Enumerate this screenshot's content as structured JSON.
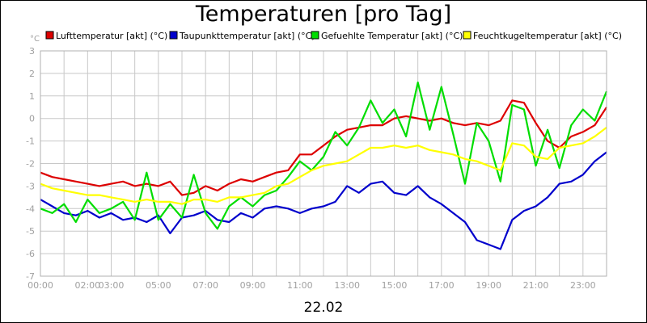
{
  "chart_data": {
    "type": "line",
    "title": "Temperaturen [pro Tag]",
    "ylabel": "°C",
    "xlabel": "22.02",
    "ylim": [
      -7,
      3
    ],
    "xlim": [
      0,
      24
    ],
    "y_ticks": [
      "3",
      "2",
      "1",
      "0",
      "-1",
      "-2",
      "-3",
      "-4",
      "-5",
      "-6",
      "-7"
    ],
    "x_ticks": [
      {
        "label": "00:00",
        "x": 0
      },
      {
        "label": "02:00",
        "x": 2
      },
      {
        "label": "03:00",
        "x": 3
      },
      {
        "label": "05:00",
        "x": 5
      },
      {
        "label": "07:00",
        "x": 7
      },
      {
        "label": "09:00",
        "x": 9
      },
      {
        "label": "11:00",
        "x": 11
      },
      {
        "label": "13:00",
        "x": 13
      },
      {
        "label": "15:00",
        "x": 15
      },
      {
        "label": "17:00",
        "x": 17
      },
      {
        "label": "19:00",
        "x": 19
      },
      {
        "label": "21:00",
        "x": 21
      },
      {
        "label": "23:00",
        "x": 23
      }
    ],
    "grid": true,
    "legend_position": "top",
    "series": [
      {
        "name": "Lufttemperatur [akt] (°C)",
        "color": "#dd0000",
        "x": [
          0,
          0.5,
          1,
          1.5,
          2,
          2.5,
          3,
          3.5,
          4,
          4.5,
          5,
          5.5,
          6,
          6.5,
          7,
          7.5,
          8,
          8.5,
          9,
          9.5,
          10,
          10.5,
          11,
          11.5,
          12,
          12.5,
          13,
          13.5,
          14,
          14.5,
          15,
          15.5,
          16,
          16.5,
          17,
          17.5,
          18,
          18.5,
          19,
          19.5,
          20,
          20.5,
          21,
          21.5,
          22,
          22.5,
          23,
          23.5,
          24
        ],
        "y": [
          -2.4,
          -2.6,
          -2.7,
          -2.8,
          -2.9,
          -3.0,
          -2.9,
          -2.8,
          -3.0,
          -2.9,
          -3.0,
          -2.8,
          -3.4,
          -3.3,
          -3.0,
          -3.2,
          -2.9,
          -2.7,
          -2.8,
          -2.6,
          -2.4,
          -2.3,
          -1.6,
          -1.6,
          -1.2,
          -0.8,
          -0.5,
          -0.4,
          -0.3,
          -0.3,
          0.0,
          0.1,
          0.0,
          -0.1,
          0.0,
          -0.2,
          -0.3,
          -0.2,
          -0.3,
          -0.1,
          0.8,
          0.7,
          -0.2,
          -1.0,
          -1.3,
          -0.8,
          -0.6,
          -0.3,
          0.5
        ]
      },
      {
        "name": "Taupunkttemperatur [akt] (°C)",
        "color": "#0000cc",
        "x": [
          0,
          0.5,
          1,
          1.5,
          2,
          2.5,
          3,
          3.5,
          4,
          4.5,
          5,
          5.5,
          6,
          6.5,
          7,
          7.5,
          8,
          8.5,
          9,
          9.5,
          10,
          10.5,
          11,
          11.5,
          12,
          12.5,
          13,
          13.5,
          14,
          14.5,
          15,
          15.5,
          16,
          16.5,
          17,
          17.5,
          18,
          18.5,
          19,
          19.5,
          20,
          20.5,
          21,
          21.5,
          22,
          22.5,
          23,
          23.5,
          24
        ],
        "y": [
          -3.6,
          -3.9,
          -4.2,
          -4.3,
          -4.1,
          -4.4,
          -4.2,
          -4.5,
          -4.4,
          -4.6,
          -4.3,
          -5.1,
          -4.4,
          -4.3,
          -4.1,
          -4.5,
          -4.6,
          -4.2,
          -4.4,
          -4.0,
          -3.9,
          -4.0,
          -4.2,
          -4.0,
          -3.9,
          -3.7,
          -3.0,
          -3.3,
          -2.9,
          -2.8,
          -3.3,
          -3.4,
          -3.0,
          -3.5,
          -3.8,
          -4.2,
          -4.6,
          -5.4,
          -5.6,
          -5.8,
          -4.5,
          -4.1,
          -3.9,
          -3.5,
          -2.9,
          -2.8,
          -2.5,
          -1.9,
          -1.5
        ]
      },
      {
        "name": "Gefuehlte Temperatur [akt] (°C)",
        "color": "#00dd00",
        "x": [
          0,
          0.5,
          1,
          1.5,
          2,
          2.5,
          3,
          3.5,
          4,
          4.5,
          5,
          5.5,
          6,
          6.5,
          7,
          7.5,
          8,
          8.5,
          9,
          9.5,
          10,
          10.5,
          11,
          11.5,
          12,
          12.5,
          13,
          13.5,
          14,
          14.5,
          15,
          15.5,
          16,
          16.5,
          17,
          17.5,
          18,
          18.5,
          19,
          19.5,
          20,
          20.5,
          21,
          21.5,
          22,
          22.5,
          23,
          23.5,
          24
        ],
        "y": [
          -4.0,
          -4.2,
          -3.8,
          -4.6,
          -3.6,
          -4.2,
          -4.0,
          -3.7,
          -4.5,
          -2.4,
          -4.5,
          -3.8,
          -4.4,
          -2.5,
          -4.2,
          -4.9,
          -3.9,
          -3.5,
          -3.9,
          -3.4,
          -3.2,
          -2.6,
          -1.9,
          -2.3,
          -1.7,
          -0.6,
          -1.2,
          -0.4,
          0.8,
          -0.2,
          0.4,
          -0.8,
          1.6,
          -0.5,
          1.4,
          -0.7,
          -2.9,
          -0.2,
          -1.0,
          -2.8,
          0.6,
          0.4,
          -2.1,
          -0.5,
          -2.2,
          -0.3,
          0.4,
          -0.1,
          1.2
        ]
      },
      {
        "name": "Feuchtkugeltemperatur [akt] (°C)",
        "color": "#ffff00",
        "x": [
          0,
          0.5,
          1,
          1.5,
          2,
          2.5,
          3,
          3.5,
          4,
          4.5,
          5,
          5.5,
          6,
          6.5,
          7,
          7.5,
          8,
          8.5,
          9,
          9.5,
          10,
          10.5,
          11,
          11.5,
          12,
          12.5,
          13,
          13.5,
          14,
          14.5,
          15,
          15.5,
          16,
          16.5,
          17,
          17.5,
          18,
          18.5,
          19,
          19.5,
          20,
          20.5,
          21,
          21.5,
          22,
          22.5,
          23,
          23.5,
          24
        ],
        "y": [
          -2.9,
          -3.1,
          -3.2,
          -3.3,
          -3.4,
          -3.4,
          -3.5,
          -3.6,
          -3.7,
          -3.6,
          -3.7,
          -3.7,
          -3.8,
          -3.6,
          -3.6,
          -3.7,
          -3.5,
          -3.5,
          -3.4,
          -3.3,
          -3.0,
          -2.9,
          -2.6,
          -2.3,
          -2.1,
          -2.0,
          -1.9,
          -1.6,
          -1.3,
          -1.3,
          -1.2,
          -1.3,
          -1.2,
          -1.4,
          -1.5,
          -1.6,
          -1.8,
          -1.9,
          -2.1,
          -2.3,
          -1.1,
          -1.2,
          -1.7,
          -1.8,
          -1.3,
          -1.2,
          -1.1,
          -0.8,
          -0.4
        ]
      }
    ]
  }
}
